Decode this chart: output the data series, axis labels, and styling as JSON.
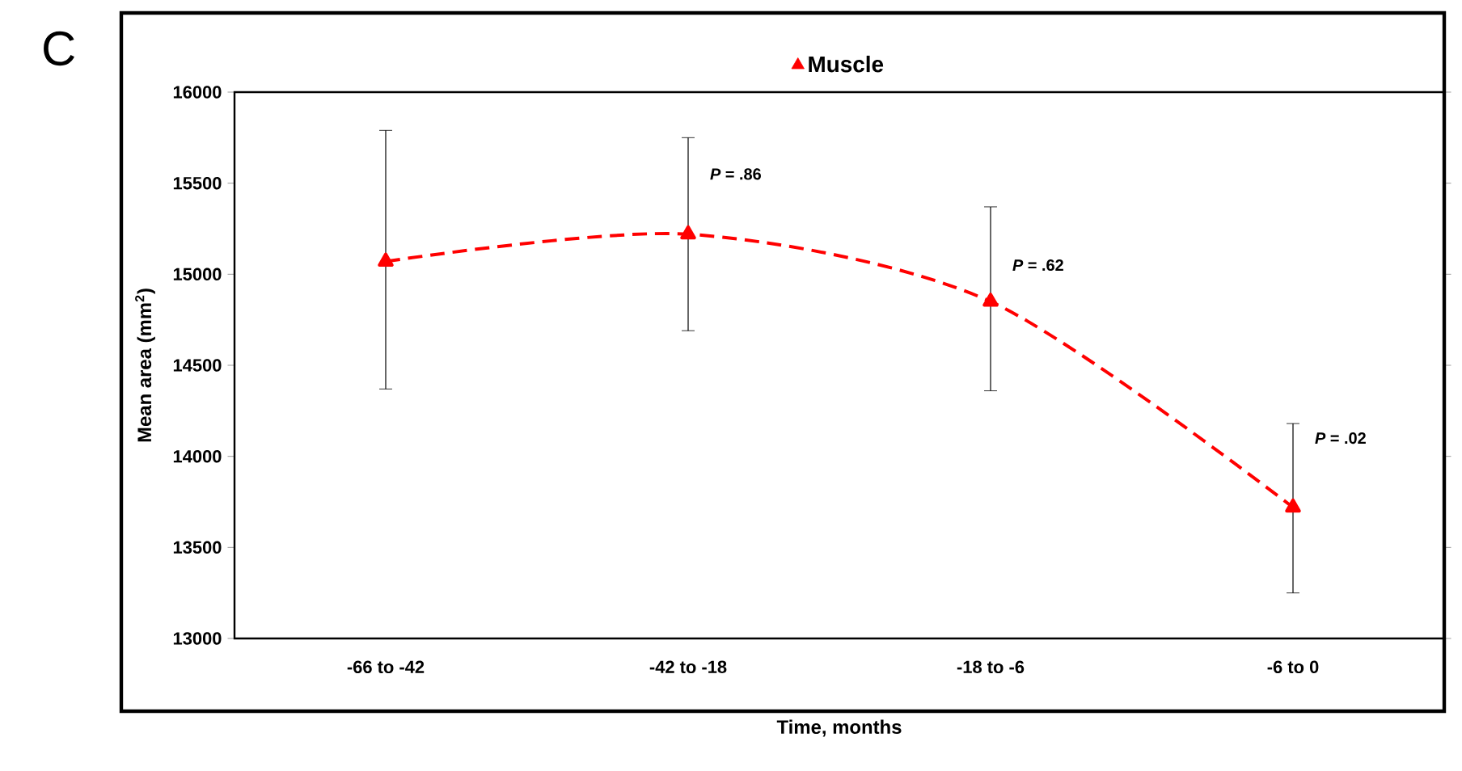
{
  "chart_data": {
    "type": "line",
    "xlabel": "Time, months",
    "ylabel": "Mean area (mm$^{2}$)",
    "categories": [
      "-66 to -42",
      "-42 to -18",
      "-18 to -6",
      "-6 to 0"
    ],
    "series": [
      {
        "name": "Muscle",
        "color": "#ff0000",
        "values": [
          15070,
          15220,
          14850,
          13720
        ],
        "errors": [
          [
            14370,
            15790
          ],
          [
            14690,
            15750
          ],
          [
            14360,
            15370
          ],
          [
            13250,
            14180
          ]
        ]
      }
    ],
    "ylim": [
      13000,
      16000
    ],
    "yticks": [
      13000,
      13500,
      14000,
      14500,
      15000,
      15500,
      16000
    ],
    "marker": "triangle",
    "line_style": "dashed",
    "legend": "top",
    "grid": false,
    "annotations": [
      "C",
      {
        "text": "*P* = .86",
        "x": "-42 to -18",
        "y": 15550
      },
      {
        "text": "*P* = .62",
        "x": "-18 to -6",
        "y": 15050
      },
      {
        "text": "*P* = .02",
        "x": "-6 to 0",
        "y": 14100
      }
    ]
  }
}
